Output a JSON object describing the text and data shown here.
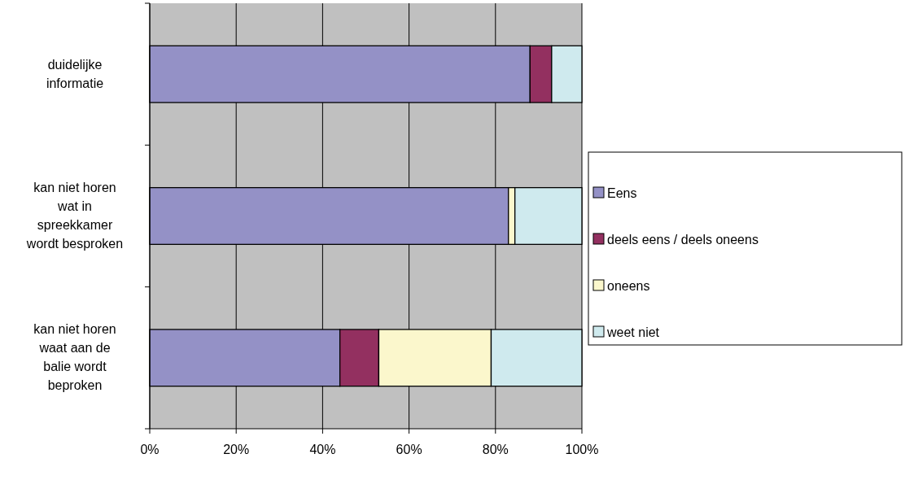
{
  "chart_data": {
    "type": "bar",
    "orientation": "horizontal",
    "stacked": true,
    "categories": [
      "duidelijke informatie",
      "kan niet horen wat in spreekkamer wordt besproken",
      "kan niet horen waat aan de balie wordt beproken"
    ],
    "series": [
      {
        "name": "Eens",
        "color": "#9491c6",
        "values": [
          88,
          83,
          44
        ]
      },
      {
        "name": "deels eens / deels oneens",
        "color": "#933060",
        "values": [
          5,
          0,
          9
        ]
      },
      {
        "name": "oneens",
        "color": "#fbf7cc",
        "values": [
          0,
          1.5,
          26
        ]
      },
      {
        "name": "weet niet",
        "color": "#cfeaee",
        "values": [
          7,
          15.5,
          21
        ]
      }
    ],
    "xlim": [
      0,
      100
    ],
    "xticks": [
      {
        "value": 0,
        "label": "0%"
      },
      {
        "value": 20,
        "label": "20%"
      },
      {
        "value": 40,
        "label": "40%"
      },
      {
        "value": 60,
        "label": "60%"
      },
      {
        "value": 80,
        "label": "80%"
      },
      {
        "value": 100,
        "label": "100%"
      }
    ],
    "grid": "x",
    "legend": "right"
  }
}
